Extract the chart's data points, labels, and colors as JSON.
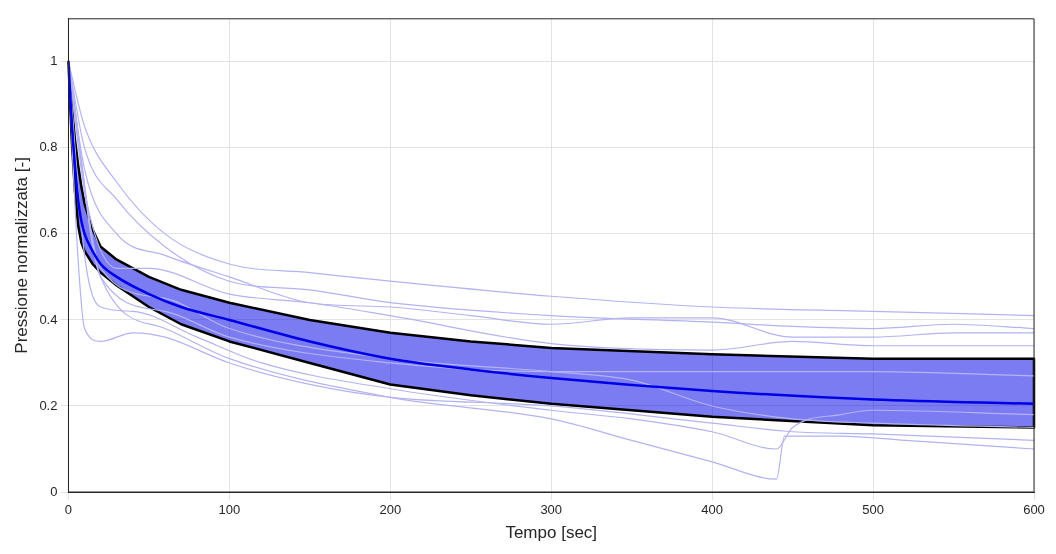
{
  "chart_data": {
    "type": "line",
    "xlabel": "Tempo [sec]",
    "ylabel": "Pressione normalizzata [-]",
    "xlim": [
      0,
      600
    ],
    "xticks": [
      0,
      100,
      200,
      300,
      400,
      500,
      600
    ],
    "ylim": [
      0,
      1.1
    ],
    "yticks": [
      0,
      0.2,
      0.4,
      0.6,
      0.8,
      1
    ],
    "grid": true,
    "legend": false,
    "marker": "none",
    "line_style": "solid",
    "series": [
      {
        "color": "#b3b3f2",
        "x": [
          0,
          10,
          30,
          60,
          100,
          150,
          200,
          300,
          400,
          500,
          600
        ],
        "values": [
          1,
          0.85,
          0.72,
          0.6,
          0.53,
          0.51,
          0.49,
          0.455,
          0.43,
          0.42,
          0.41
        ]
      },
      {
        "color": "#b3b3f2",
        "x": [
          0,
          10,
          30,
          60,
          100,
          150,
          200,
          300,
          400,
          450,
          500,
          550,
          600
        ],
        "values": [
          1,
          0.8,
          0.68,
          0.57,
          0.49,
          0.47,
          0.44,
          0.41,
          0.395,
          0.385,
          0.38,
          0.39,
          0.38
        ]
      },
      {
        "color": "#b3b3f2",
        "x": [
          0,
          10,
          30,
          60,
          100,
          150,
          200,
          250,
          300,
          350,
          400,
          450,
          500,
          550,
          600
        ],
        "values": [
          1,
          0.75,
          0.6,
          0.55,
          0.5,
          0.44,
          0.43,
          0.41,
          0.39,
          0.405,
          0.405,
          0.36,
          0.36,
          0.37,
          0.37
        ]
      },
      {
        "color": "#b3b3f2",
        "x": [
          0,
          10,
          30,
          50,
          100,
          150,
          200,
          300,
          400,
          450,
          500,
          600
        ],
        "values": [
          1,
          0.7,
          0.52,
          0.52,
          0.46,
          0.44,
          0.41,
          0.345,
          0.33,
          0.35,
          0.34,
          0.34
        ]
      },
      {
        "color": "#b3b3f2",
        "x": [
          0,
          5,
          10,
          20,
          40,
          60,
          100,
          150,
          200,
          300,
          400,
          450,
          500,
          600
        ],
        "values": [
          1,
          0.6,
          0.38,
          0.35,
          0.37,
          0.36,
          0.3,
          0.25,
          0.22,
          0.2,
          0.16,
          0.14,
          0.135,
          0.12
        ]
      },
      {
        "color": "#b3b3f2",
        "x": [
          0,
          10,
          20,
          40,
          80,
          120,
          200,
          300,
          350,
          400,
          440,
          450,
          480,
          500,
          600
        ],
        "values": [
          1,
          0.55,
          0.43,
          0.42,
          0.36,
          0.3,
          0.24,
          0.19,
          0.17,
          0.14,
          0.1,
          0.15,
          0.18,
          0.19,
          0.18
        ]
      },
      {
        "color": "#b3b3f2",
        "x": [
          0,
          20,
          60,
          100,
          200,
          300,
          350,
          400,
          440,
          445,
          480,
          520,
          600
        ],
        "values": [
          1,
          0.5,
          0.38,
          0.31,
          0.22,
          0.17,
          0.12,
          0.07,
          0.03,
          0.13,
          0.13,
          0.12,
          0.1
        ]
      },
      {
        "color": "#b3b3f2",
        "x": [
          0,
          20,
          60,
          100,
          200,
          300,
          400,
          500,
          600
        ],
        "values": [
          1,
          0.5,
          0.42,
          0.36,
          0.3,
          0.28,
          0.28,
          0.28,
          0.27
        ]
      },
      {
        "color": "#b3b3f2",
        "x": [
          0,
          20,
          60,
          100,
          200,
          300,
          350,
          400,
          450,
          500,
          600
        ],
        "values": [
          1,
          0.52,
          0.45,
          0.38,
          0.31,
          0.28,
          0.26,
          0.2,
          0.17,
          0.16,
          0.15
        ]
      },
      {
        "color": "#0000e6",
        "x": [
          0,
          2,
          4,
          6,
          8,
          10,
          15,
          20,
          30,
          50,
          70,
          100,
          150,
          200,
          250,
          300,
          400,
          500,
          600
        ],
        "values": [
          1,
          0.86,
          0.76,
          0.68,
          0.63,
          0.6,
          0.56,
          0.53,
          0.5,
          0.46,
          0.43,
          0.4,
          0.35,
          0.31,
          0.285,
          0.265,
          0.235,
          0.215,
          0.205
        ],
        "lower": [
          1,
          0.82,
          0.7,
          0.62,
          0.58,
          0.56,
          0.53,
          0.51,
          0.48,
          0.43,
          0.39,
          0.35,
          0.3,
          0.25,
          0.225,
          0.205,
          0.175,
          0.155,
          0.15
        ],
        "upper": [
          1,
          0.9,
          0.82,
          0.76,
          0.71,
          0.67,
          0.61,
          0.57,
          0.54,
          0.5,
          0.47,
          0.44,
          0.4,
          0.37,
          0.35,
          0.335,
          0.32,
          0.31,
          0.31
        ]
      }
    ]
  }
}
